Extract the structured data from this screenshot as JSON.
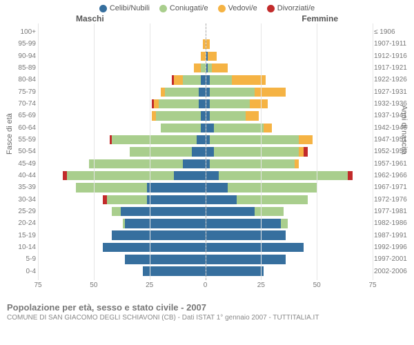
{
  "legend": {
    "items": [
      {
        "label": "Celibi/Nubili",
        "color": "#366f9e"
      },
      {
        "label": "Coniugati/e",
        "color": "#a9ce8d"
      },
      {
        "label": "Vedovi/e",
        "color": "#f5b344"
      },
      {
        "label": "Divorziati/e",
        "color": "#c22b2b"
      }
    ]
  },
  "side_labels": {
    "left": "Maschi",
    "right": "Femmine"
  },
  "axis_titles": {
    "left": "Fasce di età",
    "right": "Anni di nascita"
  },
  "x_axis": {
    "max": 75,
    "ticks": [
      75,
      50,
      25,
      0,
      25,
      50,
      75
    ]
  },
  "colors": {
    "single": "#366f9e",
    "married": "#a9ce8d",
    "widowed": "#f5b344",
    "divorced": "#c22b2b",
    "grid": "#e5e5e5",
    "background": "#ffffff"
  },
  "chart": {
    "type": "population-pyramid",
    "stacked": true
  },
  "rows": [
    {
      "age": "100+",
      "birth": "≤ 1906",
      "m": {
        "single": 0,
        "married": 0,
        "widowed": 0,
        "divorced": 0
      },
      "f": {
        "single": 0,
        "married": 0,
        "widowed": 0,
        "divorced": 0
      }
    },
    {
      "age": "95-99",
      "birth": "1907-1911",
      "m": {
        "single": 0,
        "married": 0,
        "widowed": 1,
        "divorced": 0
      },
      "f": {
        "single": 0,
        "married": 0,
        "widowed": 2,
        "divorced": 0
      }
    },
    {
      "age": "90-94",
      "birth": "1912-1916",
      "m": {
        "single": 0,
        "married": 0,
        "widowed": 2,
        "divorced": 0
      },
      "f": {
        "single": 1,
        "married": 0,
        "widowed": 4,
        "divorced": 0
      }
    },
    {
      "age": "85-89",
      "birth": "1917-1921",
      "m": {
        "single": 0,
        "married": 2,
        "widowed": 3,
        "divorced": 0
      },
      "f": {
        "single": 1,
        "married": 2,
        "widowed": 7,
        "divorced": 0
      }
    },
    {
      "age": "80-84",
      "birth": "1922-1926",
      "m": {
        "single": 2,
        "married": 8,
        "widowed": 4,
        "divorced": 1
      },
      "f": {
        "single": 2,
        "married": 10,
        "widowed": 15,
        "divorced": 0
      }
    },
    {
      "age": "75-79",
      "birth": "1927-1931",
      "m": {
        "single": 3,
        "married": 15,
        "widowed": 2,
        "divorced": 0
      },
      "f": {
        "single": 2,
        "married": 20,
        "widowed": 14,
        "divorced": 0
      }
    },
    {
      "age": "70-74",
      "birth": "1932-1936",
      "m": {
        "single": 3,
        "married": 18,
        "widowed": 2,
        "divorced": 1
      },
      "f": {
        "single": 2,
        "married": 18,
        "widowed": 8,
        "divorced": 0
      }
    },
    {
      "age": "65-69",
      "birth": "1937-1941",
      "m": {
        "single": 2,
        "married": 20,
        "widowed": 2,
        "divorced": 0
      },
      "f": {
        "single": 2,
        "married": 16,
        "widowed": 6,
        "divorced": 0
      }
    },
    {
      "age": "60-64",
      "birth": "1942-1946",
      "m": {
        "single": 2,
        "married": 18,
        "widowed": 0,
        "divorced": 0
      },
      "f": {
        "single": 4,
        "married": 22,
        "widowed": 4,
        "divorced": 0
      }
    },
    {
      "age": "55-59",
      "birth": "1947-1951",
      "m": {
        "single": 4,
        "married": 38,
        "widowed": 0,
        "divorced": 1
      },
      "f": {
        "single": 2,
        "married": 40,
        "widowed": 6,
        "divorced": 0
      }
    },
    {
      "age": "50-54",
      "birth": "1952-1956",
      "m": {
        "single": 6,
        "married": 28,
        "widowed": 0,
        "divorced": 0
      },
      "f": {
        "single": 4,
        "married": 38,
        "widowed": 2,
        "divorced": 2
      }
    },
    {
      "age": "45-49",
      "birth": "1957-1961",
      "m": {
        "single": 10,
        "married": 42,
        "widowed": 0,
        "divorced": 0
      },
      "f": {
        "single": 2,
        "married": 38,
        "widowed": 2,
        "divorced": 0
      }
    },
    {
      "age": "40-44",
      "birth": "1962-1966",
      "m": {
        "single": 14,
        "married": 48,
        "widowed": 0,
        "divorced": 2
      },
      "f": {
        "single": 6,
        "married": 58,
        "widowed": 0,
        "divorced": 2
      }
    },
    {
      "age": "35-39",
      "birth": "1967-1971",
      "m": {
        "single": 26,
        "married": 32,
        "widowed": 0,
        "divorced": 0
      },
      "f": {
        "single": 10,
        "married": 40,
        "widowed": 0,
        "divorced": 0
      }
    },
    {
      "age": "30-34",
      "birth": "1972-1976",
      "m": {
        "single": 26,
        "married": 18,
        "widowed": 0,
        "divorced": 2
      },
      "f": {
        "single": 14,
        "married": 32,
        "widowed": 0,
        "divorced": 0
      }
    },
    {
      "age": "25-29",
      "birth": "1977-1981",
      "m": {
        "single": 38,
        "married": 4,
        "widowed": 0,
        "divorced": 0
      },
      "f": {
        "single": 22,
        "married": 13,
        "widowed": 0,
        "divorced": 0
      }
    },
    {
      "age": "20-24",
      "birth": "1982-1986",
      "m": {
        "single": 36,
        "married": 1,
        "widowed": 0,
        "divorced": 0
      },
      "f": {
        "single": 34,
        "married": 3,
        "widowed": 0,
        "divorced": 0
      }
    },
    {
      "age": "15-19",
      "birth": "1987-1991",
      "m": {
        "single": 42,
        "married": 0,
        "widowed": 0,
        "divorced": 0
      },
      "f": {
        "single": 36,
        "married": 0,
        "widowed": 0,
        "divorced": 0
      }
    },
    {
      "age": "10-14",
      "birth": "1992-1996",
      "m": {
        "single": 46,
        "married": 0,
        "widowed": 0,
        "divorced": 0
      },
      "f": {
        "single": 44,
        "married": 0,
        "widowed": 0,
        "divorced": 0
      }
    },
    {
      "age": "5-9",
      "birth": "1997-2001",
      "m": {
        "single": 36,
        "married": 0,
        "widowed": 0,
        "divorced": 0
      },
      "f": {
        "single": 36,
        "married": 0,
        "widowed": 0,
        "divorced": 0
      }
    },
    {
      "age": "0-4",
      "birth": "2002-2006",
      "m": {
        "single": 28,
        "married": 0,
        "widowed": 0,
        "divorced": 0
      },
      "f": {
        "single": 26,
        "married": 0,
        "widowed": 0,
        "divorced": 0
      }
    }
  ],
  "caption": {
    "title": "Popolazione per età, sesso e stato civile - 2007",
    "sub": "COMUNE DI SAN GIACOMO DEGLI SCHIAVONI (CB) - Dati ISTAT 1° gennaio 2007 - TUTTITALIA.IT"
  }
}
